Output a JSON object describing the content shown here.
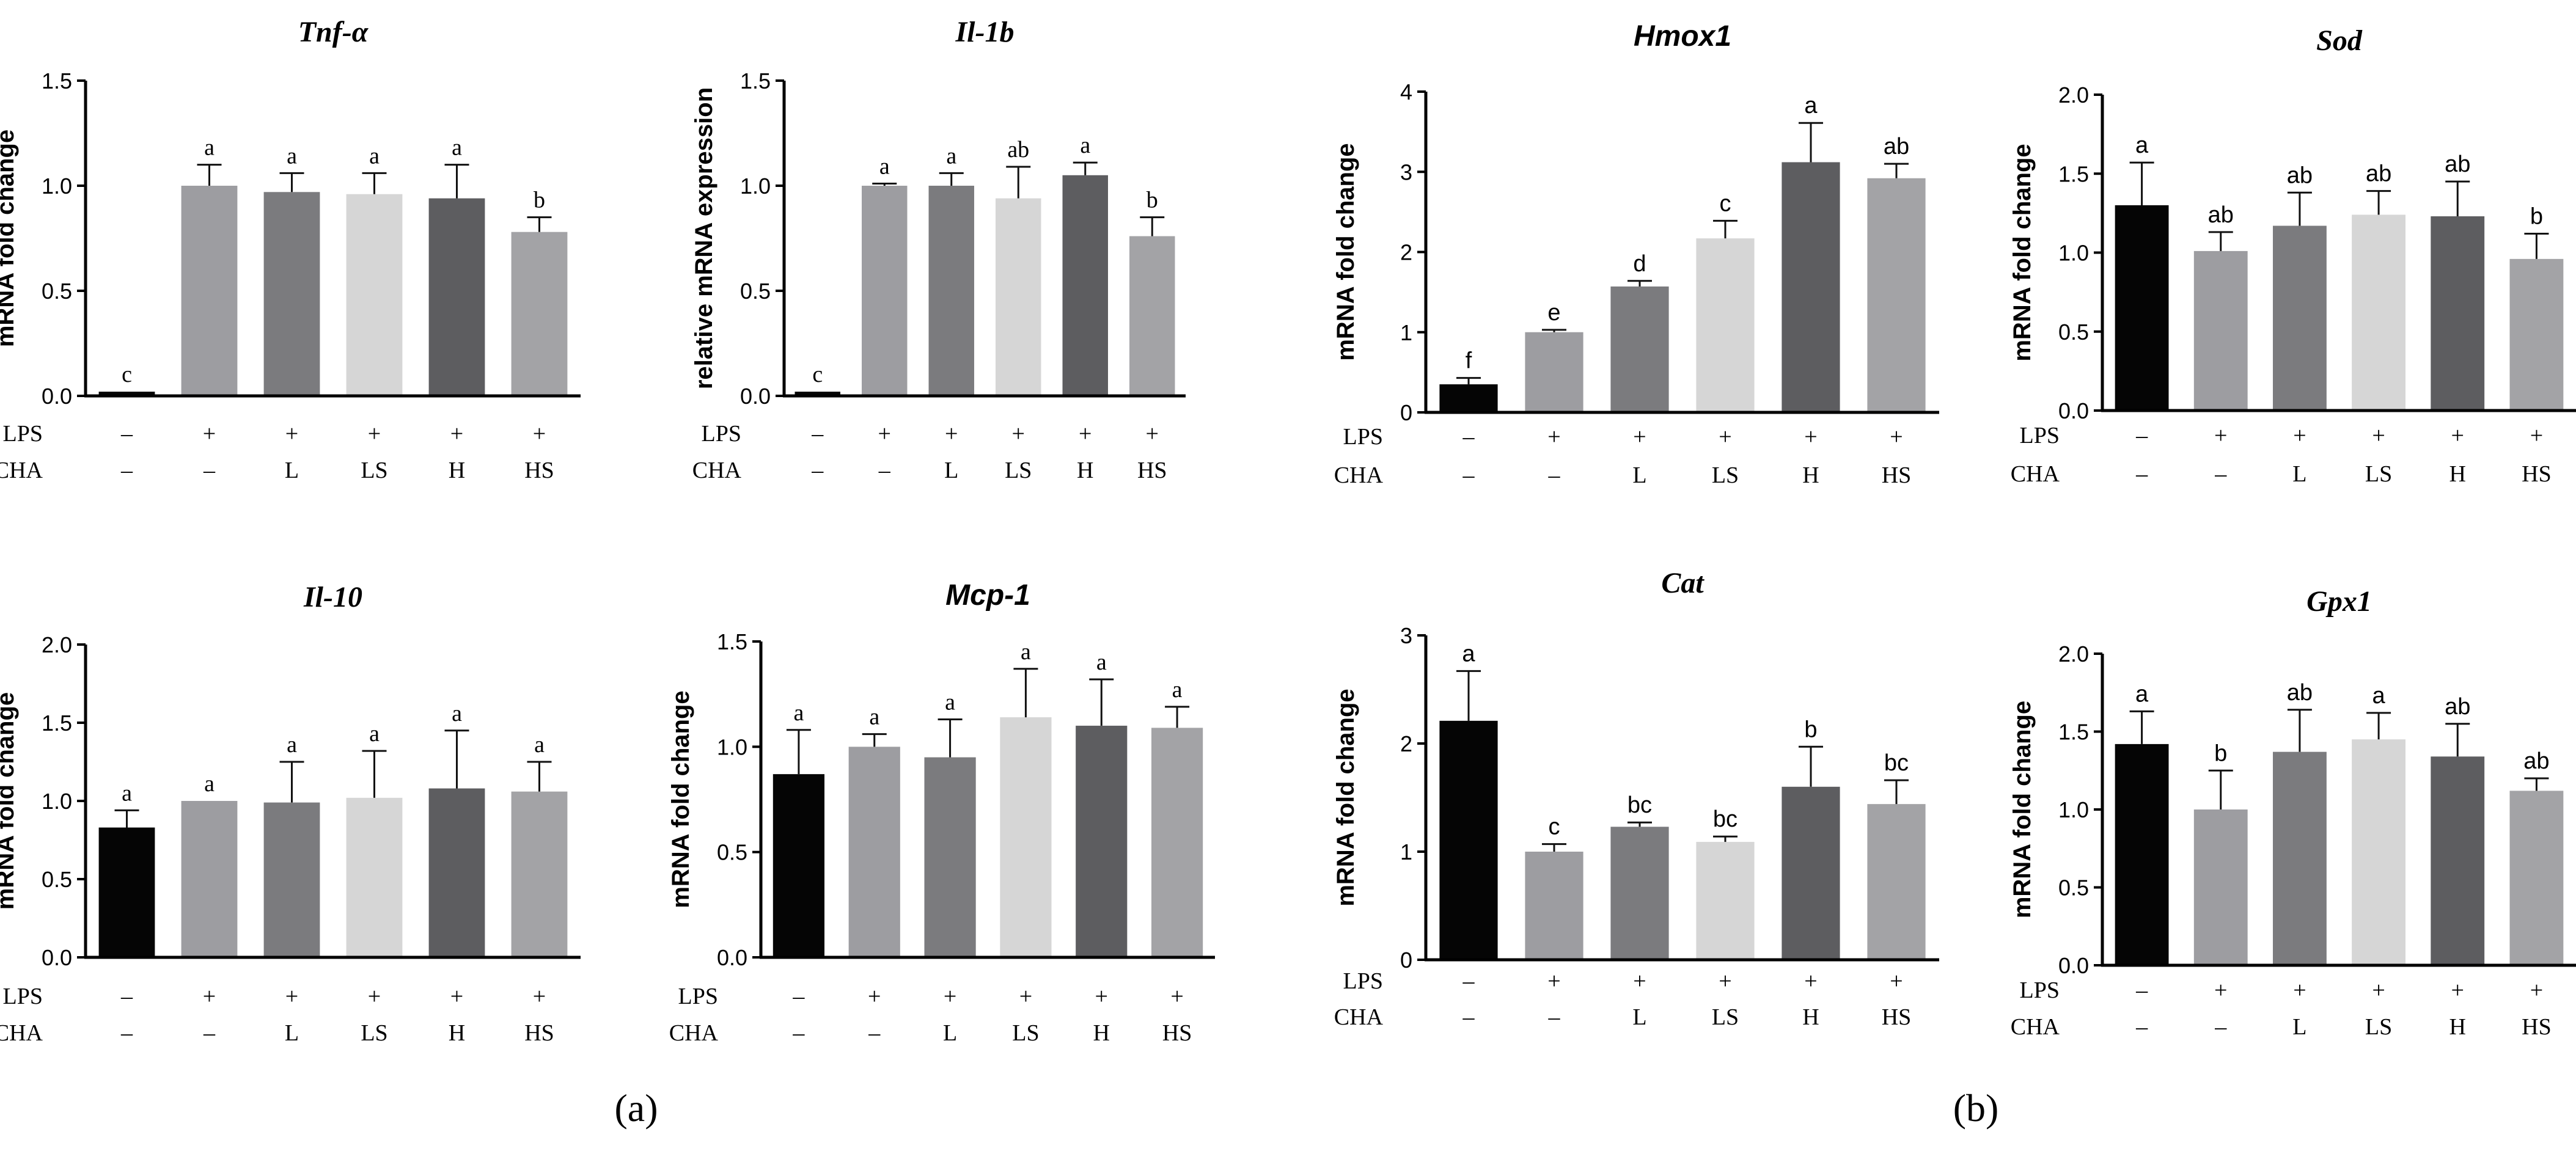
{
  "panel_labels": {
    "a": "(a)",
    "b": "(b)"
  },
  "row_labels": {
    "lps": "LPS",
    "cha": "CHA"
  },
  "lps_values": [
    "–",
    "+",
    "+",
    "+",
    "+",
    "+"
  ],
  "cha_values": [
    "–",
    "–",
    "L",
    "LS",
    "H",
    "HS"
  ],
  "colors": {
    "control": "#050505",
    "lps": "#9d9da1",
    "L": "#7b7b7e",
    "LS": "#d6d6d6",
    "H": "#5d5d60",
    "HS": "#a3a3a6"
  },
  "chart_data": [
    {
      "type": "bar",
      "title": "Tnf-α",
      "ylabel": "mRNA fold change",
      "ylim": [
        0,
        1.5
      ],
      "yticks": [
        "0.0",
        "0.5",
        "1.0",
        "1.5"
      ],
      "categories": [
        "LPS– CHA–",
        "LPS+ CHA–",
        "LPS+ L",
        "LPS+ LS",
        "LPS+ H",
        "LPS+ HS"
      ],
      "values": [
        0.02,
        1.0,
        0.97,
        0.96,
        0.94,
        0.78
      ],
      "errors": [
        0.0,
        0.1,
        0.09,
        0.1,
        0.16,
        0.07
      ],
      "letters": [
        "c",
        "a",
        "a",
        "a",
        "a",
        "b"
      ]
    },
    {
      "type": "bar",
      "title": "Il-1b",
      "ylabel": "relative mRNA expression",
      "ylim": [
        0,
        1.5
      ],
      "yticks": [
        "0.0",
        "0.5",
        "1.0",
        "1.5"
      ],
      "categories": [
        "LPS– CHA–",
        "LPS+ CHA–",
        "LPS+ L",
        "LPS+ LS",
        "LPS+ H",
        "LPS+ HS"
      ],
      "values": [
        0.02,
        1.0,
        1.0,
        0.94,
        1.05,
        0.76
      ],
      "errors": [
        0.0,
        0.01,
        0.06,
        0.15,
        0.06,
        0.09
      ],
      "letters": [
        "c",
        "a",
        "a",
        "ab",
        "a",
        "b"
      ]
    },
    {
      "type": "bar",
      "title": "Hmox1",
      "ylabel": "mRNA fold change",
      "ylim": [
        0,
        4
      ],
      "yticks": [
        "0",
        "1",
        "2",
        "3",
        "4"
      ],
      "categories": [
        "LPS– CHA–",
        "LPS+ CHA–",
        "LPS+ L",
        "LPS+ LS",
        "LPS+ H",
        "LPS+ HS"
      ],
      "values": [
        0.35,
        1.0,
        1.57,
        2.17,
        3.12,
        2.92
      ],
      "errors": [
        0.08,
        0.03,
        0.07,
        0.22,
        0.49,
        0.18
      ],
      "letters": [
        "f",
        "e",
        "d",
        "c",
        "a",
        "ab"
      ]
    },
    {
      "type": "bar",
      "title": "Sod",
      "ylabel": "mRNA fold change",
      "ylim": [
        0,
        2.0
      ],
      "yticks": [
        "0.0",
        "0.5",
        "1.0",
        "1.5",
        "2.0"
      ],
      "categories": [
        "LPS– CHA–",
        "LPS+ CHA–",
        "LPS+ L",
        "LPS+ LS",
        "LPS+ H",
        "LPS+ HS"
      ],
      "values": [
        1.3,
        1.01,
        1.17,
        1.24,
        1.23,
        0.96
      ],
      "errors": [
        0.27,
        0.12,
        0.21,
        0.15,
        0.22,
        0.16
      ],
      "letters": [
        "a",
        "ab",
        "ab",
        "ab",
        "ab",
        "b"
      ]
    },
    {
      "type": "bar",
      "title": "Il-10",
      "ylabel": "mRNA fold change",
      "ylim": [
        0,
        2.0
      ],
      "yticks": [
        "0.0",
        "0.5",
        "1.0",
        "1.5",
        "2.0"
      ],
      "categories": [
        "LPS– CHA–",
        "LPS+ CHA–",
        "LPS+ L",
        "LPS+ LS",
        "LPS+ H",
        "LPS+ HS"
      ],
      "values": [
        0.83,
        1.0,
        0.99,
        1.02,
        1.08,
        1.06
      ],
      "errors": [
        0.11,
        0.0,
        0.26,
        0.3,
        0.37,
        0.19
      ],
      "letters": [
        "a",
        "a",
        "a",
        "a",
        "a",
        "a"
      ]
    },
    {
      "type": "bar",
      "title": "Mcp-1",
      "ylabel": "mRNA fold change",
      "ylim": [
        0,
        1.5
      ],
      "yticks": [
        "0.0",
        "0.5",
        "1.0",
        "1.5"
      ],
      "categories": [
        "LPS– CHA–",
        "LPS+ CHA–",
        "LPS+ L",
        "LPS+ LS",
        "LPS+ H",
        "LPS+ HS"
      ],
      "values": [
        0.87,
        1.0,
        0.95,
        1.14,
        1.1,
        1.09
      ],
      "errors": [
        0.21,
        0.06,
        0.18,
        0.23,
        0.22,
        0.1
      ],
      "letters": [
        "a",
        "a",
        "a",
        "a",
        "a",
        "a"
      ]
    },
    {
      "type": "bar",
      "title": "Cat",
      "ylabel": "mRNA fold change",
      "ylim": [
        0,
        3
      ],
      "yticks": [
        "0",
        "1",
        "2",
        "3"
      ],
      "categories": [
        "LPS– CHA–",
        "LPS+ CHA–",
        "LPS+ L",
        "LPS+ LS",
        "LPS+ H",
        "LPS+ HS"
      ],
      "values": [
        2.21,
        1.0,
        1.23,
        1.09,
        1.6,
        1.44
      ],
      "errors": [
        0.46,
        0.07,
        0.04,
        0.05,
        0.37,
        0.22
      ],
      "letters": [
        "a",
        "c",
        "bc",
        "bc",
        "b",
        "bc"
      ]
    },
    {
      "type": "bar",
      "title": "Gpx1",
      "ylabel": "mRNA fold change",
      "ylim": [
        0,
        2.0
      ],
      "yticks": [
        "0.0",
        "0.5",
        "1.0",
        "1.5",
        "2.0"
      ],
      "categories": [
        "LPS– CHA–",
        "LPS+ CHA–",
        "LPS+ L",
        "LPS+ LS",
        "LPS+ H",
        "LPS+ HS"
      ],
      "values": [
        1.42,
        1.0,
        1.37,
        1.45,
        1.34,
        1.12
      ],
      "errors": [
        0.21,
        0.25,
        0.27,
        0.17,
        0.21,
        0.08
      ],
      "letters": [
        "a",
        "b",
        "ab",
        "a",
        "ab",
        "ab"
      ]
    }
  ]
}
